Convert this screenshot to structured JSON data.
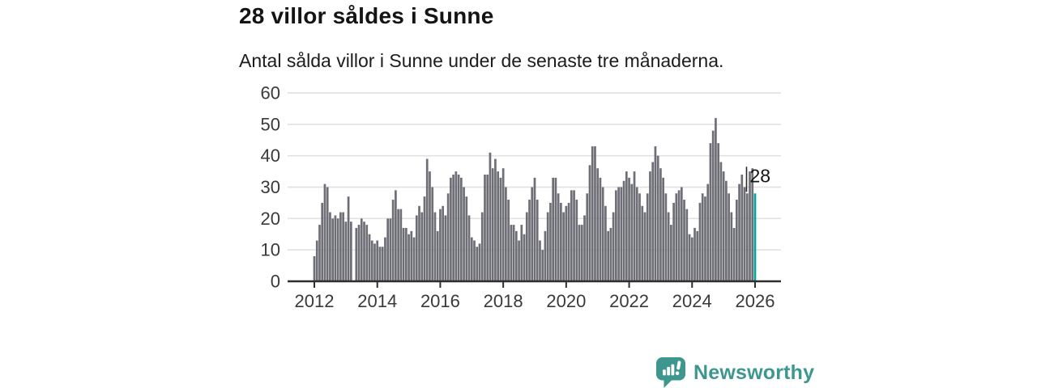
{
  "header": {
    "title": "28 villor såldes i Sunne",
    "subtitle": "Antal sålda villor i Sunne under de senaste tre månaderna."
  },
  "footer": {
    "brand": "Newsworthy",
    "brand_color": "#3d978f",
    "logo_icon": "speech-bubble-bar-chart-icon"
  },
  "chart_data": {
    "type": "bar",
    "title": "28 villor såldes i Sunne",
    "xlabel": "",
    "ylabel": "",
    "x_unit": "month",
    "x_start": "2012-01",
    "x_end": "2026-01",
    "ylim": [
      0,
      60
    ],
    "y_ticks": [
      0,
      10,
      20,
      30,
      40,
      50,
      60
    ],
    "x_tick_labels": [
      "2012",
      "2014",
      "2016",
      "2018",
      "2020",
      "2022",
      "2024",
      "2026"
    ],
    "grid": "horizontal",
    "legend": "none",
    "bar_color": "#6e6e76",
    "highlight_color": "#00a69b",
    "gridline_color": "#e2e2e2",
    "axis_color": "#2e2e2e",
    "tick_label_color": "#3a3a3a",
    "annotation": {
      "label": "28",
      "index": 168
    },
    "highlight_index": 168,
    "values": [
      8,
      13,
      18,
      25,
      31,
      30,
      22,
      20,
      21,
      20,
      22,
      22,
      19,
      27,
      19,
      0,
      17,
      18,
      20,
      19,
      18,
      15,
      13,
      12,
      13,
      11,
      11,
      14,
      20,
      20,
      26,
      29,
      23,
      23,
      17,
      17,
      15,
      16,
      14,
      21,
      24,
      22,
      27,
      39,
      35,
      30,
      22,
      16,
      23,
      24,
      21,
      28,
      33,
      34,
      35,
      34,
      33,
      30,
      27,
      21,
      14,
      13,
      11,
      12,
      22,
      34,
      34,
      41,
      36,
      39,
      35,
      33,
      36,
      30,
      26,
      18,
      18,
      16,
      13,
      18,
      15,
      22,
      26,
      30,
      33,
      26,
      13,
      10,
      16,
      22,
      25,
      33,
      33,
      28,
      25,
      22,
      24,
      25,
      29,
      29,
      26,
      18,
      18,
      21,
      28,
      37,
      43,
      43,
      36,
      33,
      30,
      24,
      16,
      17,
      22,
      29,
      30,
      30,
      32,
      35,
      33,
      31,
      35,
      30,
      28,
      24,
      22,
      28,
      35,
      38,
      43,
      40,
      36,
      33,
      28,
      22,
      18,
      25,
      28,
      29,
      30,
      26,
      23,
      15,
      14,
      17,
      16,
      25,
      28,
      27,
      31,
      44,
      48,
      52,
      44,
      38,
      35,
      32,
      28,
      22,
      17,
      26,
      31,
      34,
      30,
      28,
      35,
      36,
      28
    ]
  }
}
